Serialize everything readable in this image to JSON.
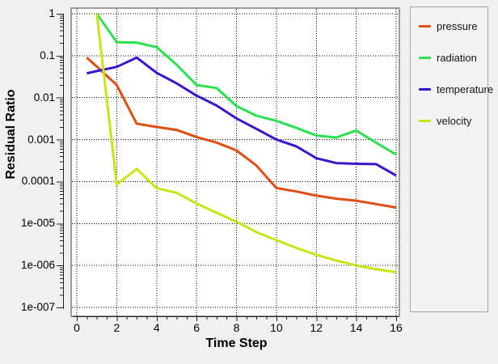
{
  "window": {
    "background": "#f0f0f0"
  },
  "chart_data": {
    "type": "line",
    "title": "",
    "xlabel": "Time Step",
    "ylabel": "Residual Ratio",
    "x_axis": {
      "min": 0,
      "max": 16,
      "major_tick_step": 2,
      "minor_tick_step": 0.5,
      "tick_labels": [
        "0",
        "2",
        "4",
        "6",
        "8",
        "10",
        "12",
        "14",
        "16"
      ]
    },
    "y_axis": {
      "scale": "log",
      "min": 1e-07,
      "max": 1,
      "tick_labels": [
        "1",
        "0.1",
        "0.01",
        "0.001",
        "0.0001",
        "1e-005",
        "1e-006",
        "1e-007"
      ]
    },
    "grid": {
      "on": true,
      "style": "dotted",
      "color": "#000000"
    },
    "legend": {
      "position": "right",
      "entries": [
        "pressure",
        "radiation",
        "temperature",
        "velocity"
      ]
    },
    "series": [
      {
        "name": "pressure",
        "color": "#e14e11",
        "x": [
          0.5,
          1,
          2,
          3,
          4,
          5,
          6,
          7,
          8,
          9,
          10,
          11,
          12,
          13,
          14,
          15,
          16
        ],
        "y": [
          0.09,
          0.055,
          0.02,
          0.0024,
          0.002,
          0.0017,
          0.00115,
          0.00085,
          0.00055,
          0.00024,
          7e-05,
          5.8e-05,
          4.6e-05,
          3.9e-05,
          3.5e-05,
          2.9e-05,
          2.4e-05
        ]
      },
      {
        "name": "radiation",
        "color": "#2ce14e",
        "x": [
          1,
          2,
          3,
          4,
          5,
          6,
          7,
          8,
          9,
          10,
          11,
          12,
          13,
          14,
          15,
          16
        ],
        "y": [
          1.0,
          0.21,
          0.205,
          0.16,
          0.061,
          0.02,
          0.017,
          0.0063,
          0.0037,
          0.0028,
          0.0019,
          0.00125,
          0.00112,
          0.00165,
          0.00084,
          0.00044
        ]
      },
      {
        "name": "temperature",
        "color": "#3d14cd",
        "x": [
          0.5,
          1,
          2,
          3,
          4,
          5,
          6,
          7,
          8,
          9,
          10,
          11,
          12,
          13,
          14,
          15,
          16
        ],
        "y": [
          0.038,
          0.043,
          0.054,
          0.09,
          0.039,
          0.022,
          0.0112,
          0.0065,
          0.0032,
          0.0018,
          0.001,
          0.00069,
          0.00036,
          0.000275,
          0.000265,
          0.00026,
          0.00014
        ]
      },
      {
        "name": "velocity",
        "color": "#c9e414",
        "x": [
          1,
          2,
          3,
          4,
          5,
          6,
          7,
          8,
          9,
          10,
          11,
          12,
          13,
          14,
          15,
          16
        ],
        "y": [
          1.0,
          8.5e-05,
          0.0002,
          6.9e-05,
          5.4e-05,
          3e-05,
          1.8e-05,
          1.1e-05,
          6.2e-06,
          4e-06,
          2.6e-06,
          1.8e-06,
          1.3e-06,
          1e-06,
          8.1e-07,
          6.9e-07
        ]
      }
    ]
  }
}
